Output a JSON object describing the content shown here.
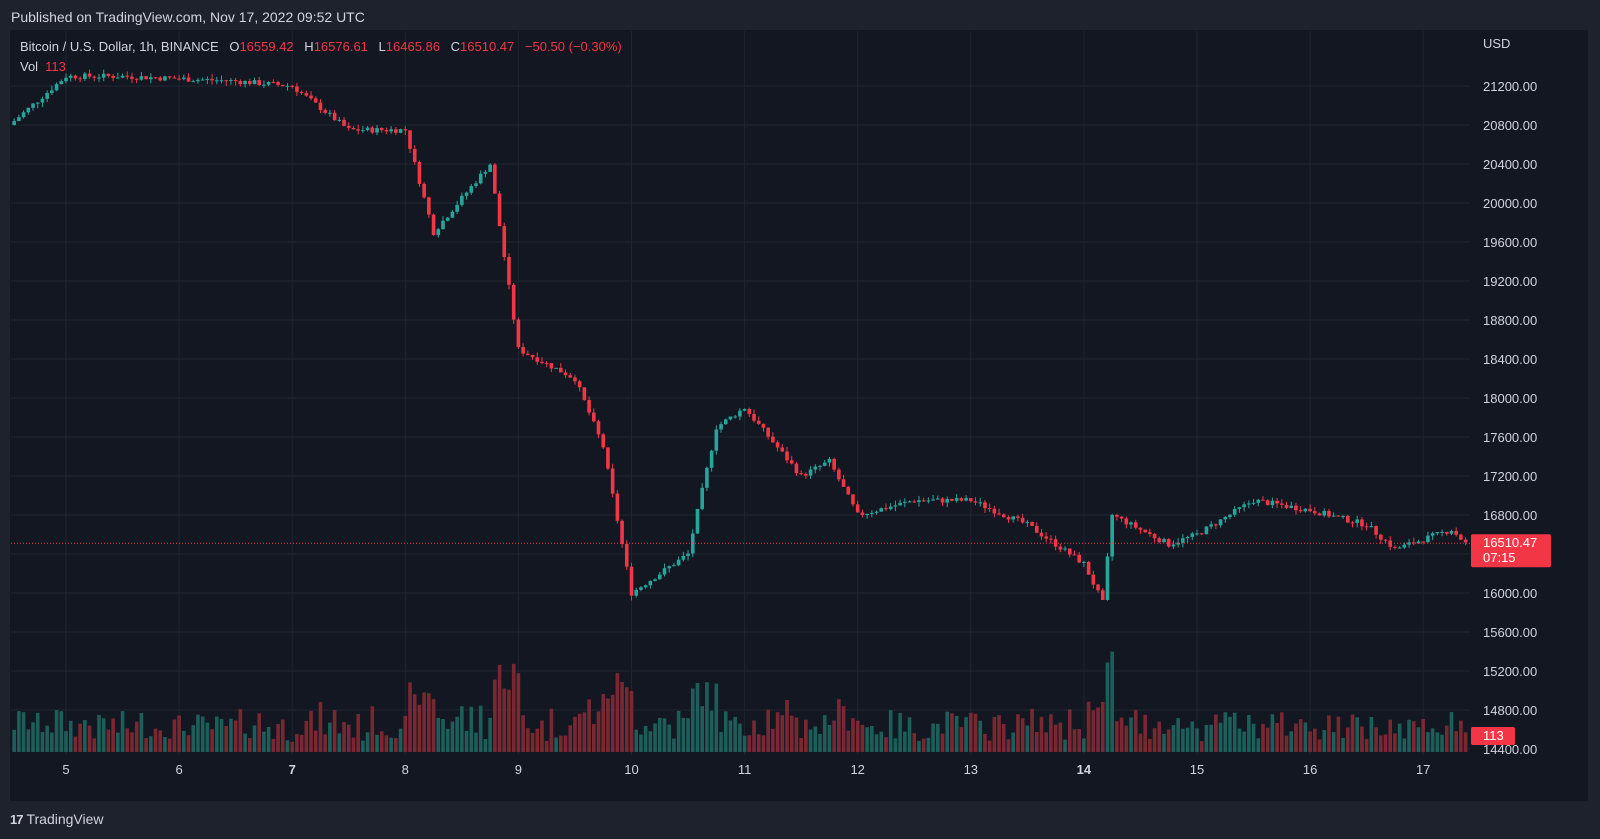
{
  "header": {
    "published": "Published on TradingView.com, Nov 17, 2022 09:52 UTC"
  },
  "legend": {
    "symbol": "Bitcoin / U.S. Dollar, 1h, BINANCE",
    "o_label": "O",
    "o_value": "16559.42",
    "h_label": "H",
    "h_value": "16576.61",
    "l_label": "L",
    "l_value": "16465.86",
    "c_label": "C",
    "c_value": "16510.47",
    "change": "−50.50 (−0.30%)",
    "vol_label": "Vol",
    "vol_value": "113"
  },
  "price_axis": {
    "currency": "USD",
    "current_price": "16510.47",
    "countdown": "07:15",
    "volume_badge": "113"
  },
  "footer": {
    "brand": "TradingView"
  },
  "colors": {
    "up": "#26a69a",
    "down": "#f23645",
    "background": "#131722",
    "grid": "#1f2430",
    "text": "#d1d4dc"
  },
  "chart_data": {
    "type": "candlestick",
    "symbol": "BTC/USD",
    "interval": "1h",
    "x_ticks": [
      "5",
      "6",
      "7",
      "8",
      "9",
      "10",
      "11",
      "12",
      "13",
      "14",
      "15",
      "16",
      "17"
    ],
    "x_ticks_bold": [
      "7",
      "14"
    ],
    "y_ticks": [
      21200,
      20800,
      20400,
      20000,
      19600,
      19200,
      18800,
      18400,
      18000,
      17600,
      17200,
      16800,
      16400,
      16000,
      15600,
      15200,
      14800,
      14400
    ],
    "ylim": [
      14400,
      21600
    ],
    "grid": true,
    "series": [
      {
        "name": "Bitcoin / U.S. Dollar",
        "description": "Hourly price path, 2022-11-04 to 2022-11-17, approximate close prices",
        "points": [
          {
            "t": "2022-11-04 12:00",
            "close": 20800
          },
          {
            "t": "2022-11-05 00:00",
            "close": 21300
          },
          {
            "t": "2022-11-05 12:00",
            "close": 21300
          },
          {
            "t": "2022-11-06 12:00",
            "close": 21250
          },
          {
            "t": "2022-11-07 00:00",
            "close": 21200
          },
          {
            "t": "2022-11-07 12:00",
            "close": 20750
          },
          {
            "t": "2022-11-08 00:00",
            "close": 20750
          },
          {
            "t": "2022-11-08 06:00",
            "close": 19700
          },
          {
            "t": "2022-11-08 18:00",
            "close": 20400
          },
          {
            "t": "2022-11-09 00:00",
            "close": 18500
          },
          {
            "t": "2022-11-09 12:00",
            "close": 18200
          },
          {
            "t": "2022-11-09 18:00",
            "close": 17500
          },
          {
            "t": "2022-11-10 00:00",
            "close": 16000
          },
          {
            "t": "2022-11-10 12:00",
            "close": 16400
          },
          {
            "t": "2022-11-10 18:00",
            "close": 17700
          },
          {
            "t": "2022-11-11 00:00",
            "close": 17900
          },
          {
            "t": "2022-11-11 12:00",
            "close": 17200
          },
          {
            "t": "2022-11-11 18:00",
            "close": 17350
          },
          {
            "t": "2022-11-12 00:00",
            "close": 16800
          },
          {
            "t": "2022-11-12 12:00",
            "close": 16950
          },
          {
            "t": "2022-11-13 00:00",
            "close": 16950
          },
          {
            "t": "2022-11-13 12:00",
            "close": 16700
          },
          {
            "t": "2022-11-14 00:00",
            "close": 16300
          },
          {
            "t": "2022-11-14 04:00",
            "close": 15900
          },
          {
            "t": "2022-11-14 06:00",
            "close": 16800
          },
          {
            "t": "2022-11-14 18:00",
            "close": 16500
          },
          {
            "t": "2022-11-15 00:00",
            "close": 16600
          },
          {
            "t": "2022-11-15 12:00",
            "close": 16950
          },
          {
            "t": "2022-11-16 00:00",
            "close": 16850
          },
          {
            "t": "2022-11-16 12:00",
            "close": 16700
          },
          {
            "t": "2022-11-16 18:00",
            "close": 16450
          },
          {
            "t": "2022-11-17 06:00",
            "close": 16650
          },
          {
            "t": "2022-11-17 09:00",
            "close": 16510.47
          }
        ]
      }
    ],
    "volume": {
      "description": "hourly volume bars, taller during 8–10 Nov selloff",
      "last": 113
    }
  }
}
